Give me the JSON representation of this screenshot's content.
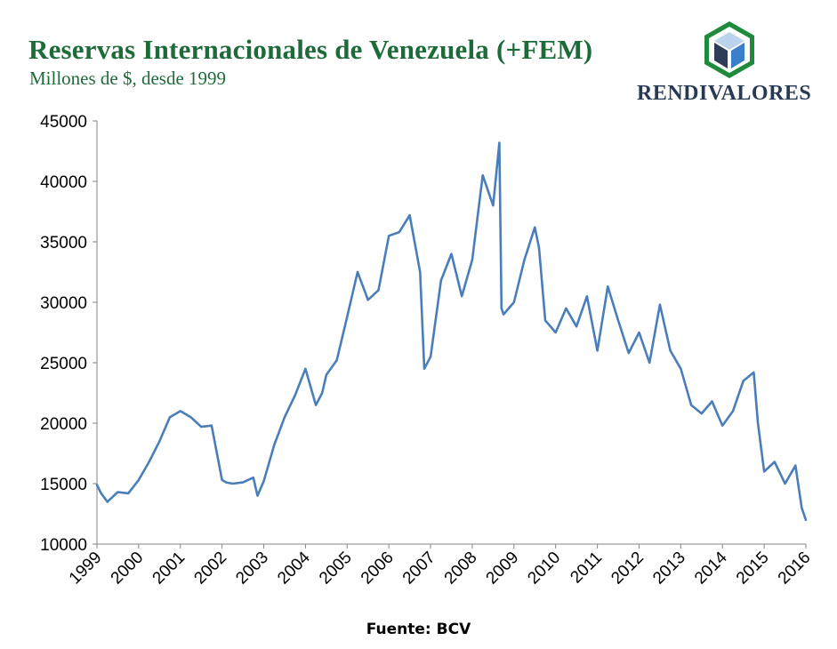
{
  "header": {
    "title": "Reservas Internacionales de Venezuela (+FEM)",
    "subtitle": "Millones de $, desde 1999"
  },
  "brand": {
    "name": "RENDIVALORES",
    "logo_icon": "cube-logo-icon",
    "colors": {
      "outer": "#1e8a3c",
      "top": "#bcd3ec",
      "left": "#2e3d55",
      "right": "#3a7fc9"
    }
  },
  "footer": {
    "source": "Fuente: BCV"
  },
  "colors": {
    "title": "#1e6b3a",
    "line": "#4a7ebb",
    "axis": "#868686"
  },
  "chart_data": {
    "type": "line",
    "title": "Reservas Internacionales de Venezuela (+FEM)",
    "subtitle": "Millones de $, desde 1999",
    "ylim": [
      10000,
      45000
    ],
    "xlim": [
      1999.0,
      2016.0
    ],
    "y_ticks": [
      "10000",
      "15000",
      "20000",
      "25000",
      "30000",
      "35000",
      "40000",
      "45000"
    ],
    "x_ticks": [
      "1999",
      "2000",
      "2001",
      "2002",
      "2003",
      "2004",
      "2005",
      "2006",
      "2007",
      "2008",
      "2009",
      "2010",
      "2011",
      "2012",
      "2013",
      "2014",
      "2015",
      "2016"
    ],
    "grid": false,
    "legend": "none",
    "x": [
      1999.0,
      1999.1,
      1999.25,
      1999.5,
      1999.75,
      2000.0,
      2000.25,
      2000.5,
      2000.75,
      2001.0,
      2001.25,
      2001.5,
      2001.75,
      2002.0,
      2002.1,
      2002.25,
      2002.5,
      2002.75,
      2002.85,
      2003.0,
      2003.25,
      2003.5,
      2003.75,
      2004.0,
      2004.25,
      2004.4,
      2004.5,
      2004.75,
      2005.0,
      2005.25,
      2005.5,
      2005.75,
      2006.0,
      2006.25,
      2006.5,
      2006.75,
      2006.85,
      2007.0,
      2007.25,
      2007.5,
      2007.75,
      2008.0,
      2008.25,
      2008.5,
      2008.65,
      2008.7,
      2008.75,
      2009.0,
      2009.25,
      2009.5,
      2009.6,
      2009.75,
      2010.0,
      2010.25,
      2010.5,
      2010.75,
      2011.0,
      2011.25,
      2011.5,
      2011.75,
      2012.0,
      2012.25,
      2012.5,
      2012.75,
      2013.0,
      2013.25,
      2013.5,
      2013.75,
      2014.0,
      2014.25,
      2014.5,
      2014.75,
      2014.85,
      2015.0,
      2015.25,
      2015.5,
      2015.75,
      2015.9,
      2016.0
    ],
    "values": [
      14900,
      14200,
      13500,
      14300,
      14200,
      15300,
      16800,
      18500,
      20500,
      21000,
      20500,
      19700,
      19800,
      15300,
      15100,
      15000,
      15100,
      15500,
      14000,
      15200,
      18200,
      20500,
      22300,
      24500,
      21500,
      22500,
      24000,
      25200,
      28800,
      32500,
      30200,
      31000,
      35500,
      35800,
      37200,
      32500,
      24500,
      25500,
      31800,
      34000,
      30500,
      33500,
      40500,
      38000,
      43200,
      29500,
      29000,
      30000,
      33500,
      36200,
      34500,
      28500,
      27500,
      29500,
      28000,
      30500,
      26000,
      31300,
      28500,
      25800,
      27500,
      25000,
      29800,
      26000,
      24500,
      21500,
      20800,
      21800,
      19800,
      21000,
      23500,
      24200,
      20000,
      16000,
      16800,
      15000,
      16500,
      13000,
      12000
    ]
  }
}
